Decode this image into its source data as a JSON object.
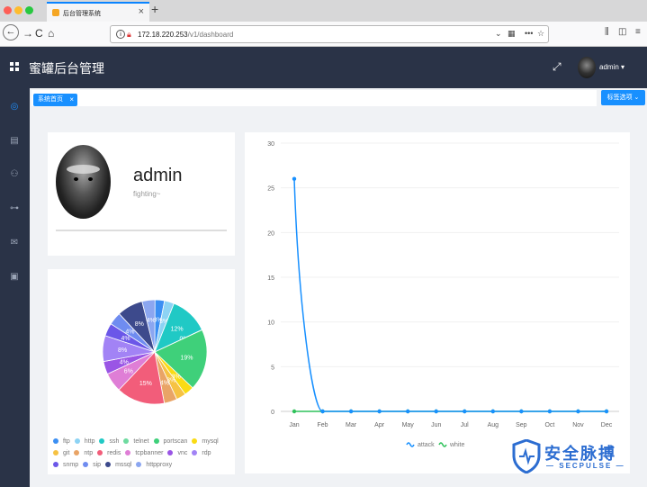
{
  "browser": {
    "tab_title": "后台管理系统",
    "url_host": "172.18.220.253",
    "url_path": "/v1/dashboard",
    "traffic_lights": [
      "#fe5f57",
      "#febc2e",
      "#28c840"
    ]
  },
  "header": {
    "app_title": "蜜罐后台管理",
    "username": "admin"
  },
  "tags": {
    "home_label": "系统首页",
    "options_label": "标签选项"
  },
  "profile": {
    "name": "admin",
    "motto": "fighting~"
  },
  "pie_chart": {
    "chart_data": {
      "type": "pie",
      "slices": [
        {
          "name": "ftp",
          "value": 3,
          "label": "3%",
          "color": "#3b8ff3"
        },
        {
          "name": "http",
          "value": 3,
          "label": "3%",
          "color": "#8dd3f4"
        },
        {
          "name": "ssh",
          "value": 12,
          "label": "12%",
          "color": "#20c9c5"
        },
        {
          "name": "telnet",
          "value": 0,
          "label": "0%",
          "color": "#6fdba0"
        },
        {
          "name": "portscan",
          "value": 19,
          "label": "19%",
          "color": "#3fd07a"
        },
        {
          "name": "mysql",
          "value": 3,
          "label": "3%",
          "color": "#fadb14"
        },
        {
          "name": "git",
          "value": 3,
          "label": "3%",
          "color": "#f6c243"
        },
        {
          "name": "ntp",
          "value": 4,
          "label": "4%",
          "color": "#e9a466"
        },
        {
          "name": "redis",
          "value": 15,
          "label": "15%",
          "color": "#f25d7a"
        },
        {
          "name": "tcpbanner",
          "value": 6,
          "label": "6%",
          "color": "#df7ed6"
        },
        {
          "name": "vnc",
          "value": 4,
          "label": "4%",
          "color": "#9a55e5"
        },
        {
          "name": "rdp",
          "value": 8,
          "label": "8%",
          "color": "#a283f5"
        },
        {
          "name": "snmp",
          "value": 4,
          "label": "4%",
          "color": "#6b57e8"
        },
        {
          "name": "sip",
          "value": 4,
          "label": "4%",
          "color": "#6f8cf0"
        },
        {
          "name": "mssql",
          "value": 8,
          "label": "8%",
          "color": "#3d4a8c"
        },
        {
          "name": "httpproxy",
          "value": 4,
          "label": "4%",
          "color": "#8ba6f0"
        }
      ]
    }
  },
  "line_chart": {
    "chart_data": {
      "type": "line",
      "categories": [
        "Jan",
        "Feb",
        "Mar",
        "Apr",
        "May",
        "Jun",
        "Jul",
        "Aug",
        "Sep",
        "Oct",
        "Nov",
        "Dec"
      ],
      "series": [
        {
          "name": "attack",
          "values": [
            26,
            0,
            0,
            0,
            0,
            0,
            0,
            0,
            0,
            0,
            0,
            0
          ],
          "color": "#1890ff"
        },
        {
          "name": "white",
          "values": [
            0,
            0,
            0,
            0,
            0,
            0,
            0,
            0,
            0,
            0,
            0,
            0
          ],
          "color": "#2fc25b"
        }
      ],
      "ylim": [
        0,
        30
      ],
      "yticks": [
        0,
        5,
        10,
        15,
        20,
        25,
        30
      ],
      "grid": true,
      "legend": "bottom"
    }
  },
  "watermark": {
    "title": "安全脉搏",
    "subtitle": "SECPULSE"
  }
}
